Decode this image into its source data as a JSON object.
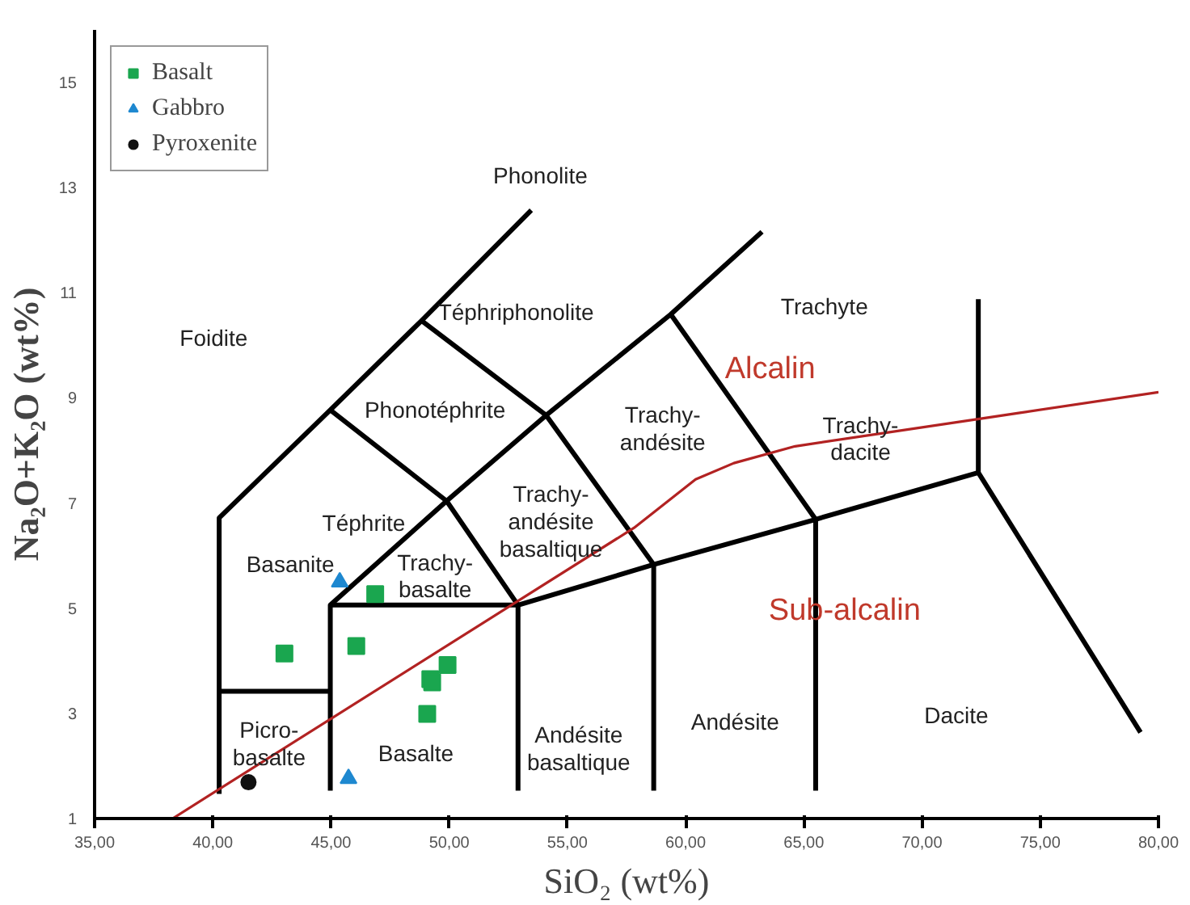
{
  "chart_data": {
    "type": "scatter",
    "xlabel": "SiO₂ (wt%)",
    "ylabel": "Na₂O+K₂O (wt%)",
    "xlim": [
      35,
      80
    ],
    "ylim": [
      1,
      16
    ],
    "xticks": [
      {
        "value": 35,
        "label": "35,00"
      },
      {
        "value": 40,
        "label": "40,00"
      },
      {
        "value": 45,
        "label": "45,00"
      },
      {
        "value": 50,
        "label": "50,00"
      },
      {
        "value": 55,
        "label": "55,00"
      },
      {
        "value": 60,
        "label": "60,00"
      },
      {
        "value": 65,
        "label": "65,00"
      },
      {
        "value": 70,
        "label": "70,00"
      },
      {
        "value": 75,
        "label": "75,00"
      },
      {
        "value": 80,
        "label": "80,00"
      }
    ],
    "yticks": [
      1,
      3,
      5,
      7,
      9,
      11,
      13,
      15
    ],
    "grid": false,
    "legend": "top left",
    "series": [
      {
        "type": "line",
        "color": "#000000",
        "x": [
          40.27,
          40.27,
          44.97,
          48.83,
          53.47
        ],
        "values": [
          1.47,
          6.72,
          8.77,
          10.47,
          12.57
        ]
      },
      {
        "type": "line",
        "color": "#000000",
        "x": [
          40.27,
          44.97
        ],
        "values": [
          3.42,
          3.42
        ]
      },
      {
        "type": "line",
        "color": "#000000",
        "x": [
          44.97,
          44.97,
          49.89,
          54.1,
          59.37,
          63.23
        ],
        "values": [
          1.53,
          5.06,
          7.04,
          8.67,
          10.59,
          12.16
        ]
      },
      {
        "type": "line",
        "color": "#000000",
        "x": [
          44.97,
          52.91,
          52.91
        ],
        "values": [
          5.06,
          5.06,
          1.53
        ]
      },
      {
        "type": "line",
        "color": "#000000",
        "x": [
          44.97,
          49.89,
          52.91
        ],
        "values": [
          8.77,
          7.04,
          5.06
        ]
      },
      {
        "type": "line",
        "color": "#000000",
        "x": [
          48.83,
          54.1,
          58.65,
          58.65
        ],
        "values": [
          10.47,
          8.67,
          5.83,
          1.53
        ]
      },
      {
        "type": "line",
        "color": "#000000",
        "x": [
          52.91,
          58.65,
          65.5,
          72.38
        ],
        "values": [
          5.06,
          5.83,
          6.69,
          7.58
        ]
      },
      {
        "type": "line",
        "color": "#000000",
        "x": [
          59.37,
          65.5,
          65.5
        ],
        "values": [
          10.59,
          6.69,
          1.53
        ]
      },
      {
        "type": "line",
        "color": "#000000",
        "x": [
          72.38,
          72.38,
          79.24
        ],
        "values": [
          10.88,
          7.58,
          2.64
        ]
      },
      {
        "type": "line",
        "color": "#b22222",
        "x": [
          38.3,
          57.82,
          60.42,
          62.04,
          64.63,
          72.08,
          80
        ],
        "values": [
          1.0,
          6.53,
          7.45,
          7.76,
          8.08,
          8.58,
          9.11
        ]
      },
      {
        "name": "Basalt",
        "color": "#1aa64f",
        "marker": "square",
        "x": [
          43.03,
          46.07,
          46.87,
          49.93,
          49.2,
          49.28,
          49.07
        ],
        "values": [
          4.14,
          4.28,
          5.27,
          3.92,
          3.65,
          3.59,
          2.99
        ]
      },
      {
        "name": "Gabbro",
        "color": "#1e88d0",
        "marker": "triangle",
        "x": [
          45.37,
          45.74
        ],
        "values": [
          5.5,
          1.76
        ]
      },
      {
        "name": "Pyroxenite",
        "color": "#111111",
        "marker": "circle",
        "x": [
          41.51
        ],
        "values": [
          1.69
        ]
      }
    ],
    "annotations": [
      "Foidite",
      "Phonolite",
      "Téphriphonolite",
      "Trachyte",
      "Alcalin",
      "Phonotéphrite",
      "Trachy-\nandésite",
      "Trachy-\ndacite",
      "Trachy-\nandésite\nbasaltique",
      "Téphrite",
      "Basanite",
      "Trachy-\nbasalte",
      "Sub-alcalin",
      "Picro-\nbasalte",
      "Basalte",
      "Andésite\nbasaltique",
      "Andésite",
      "Dacite"
    ]
  }
}
